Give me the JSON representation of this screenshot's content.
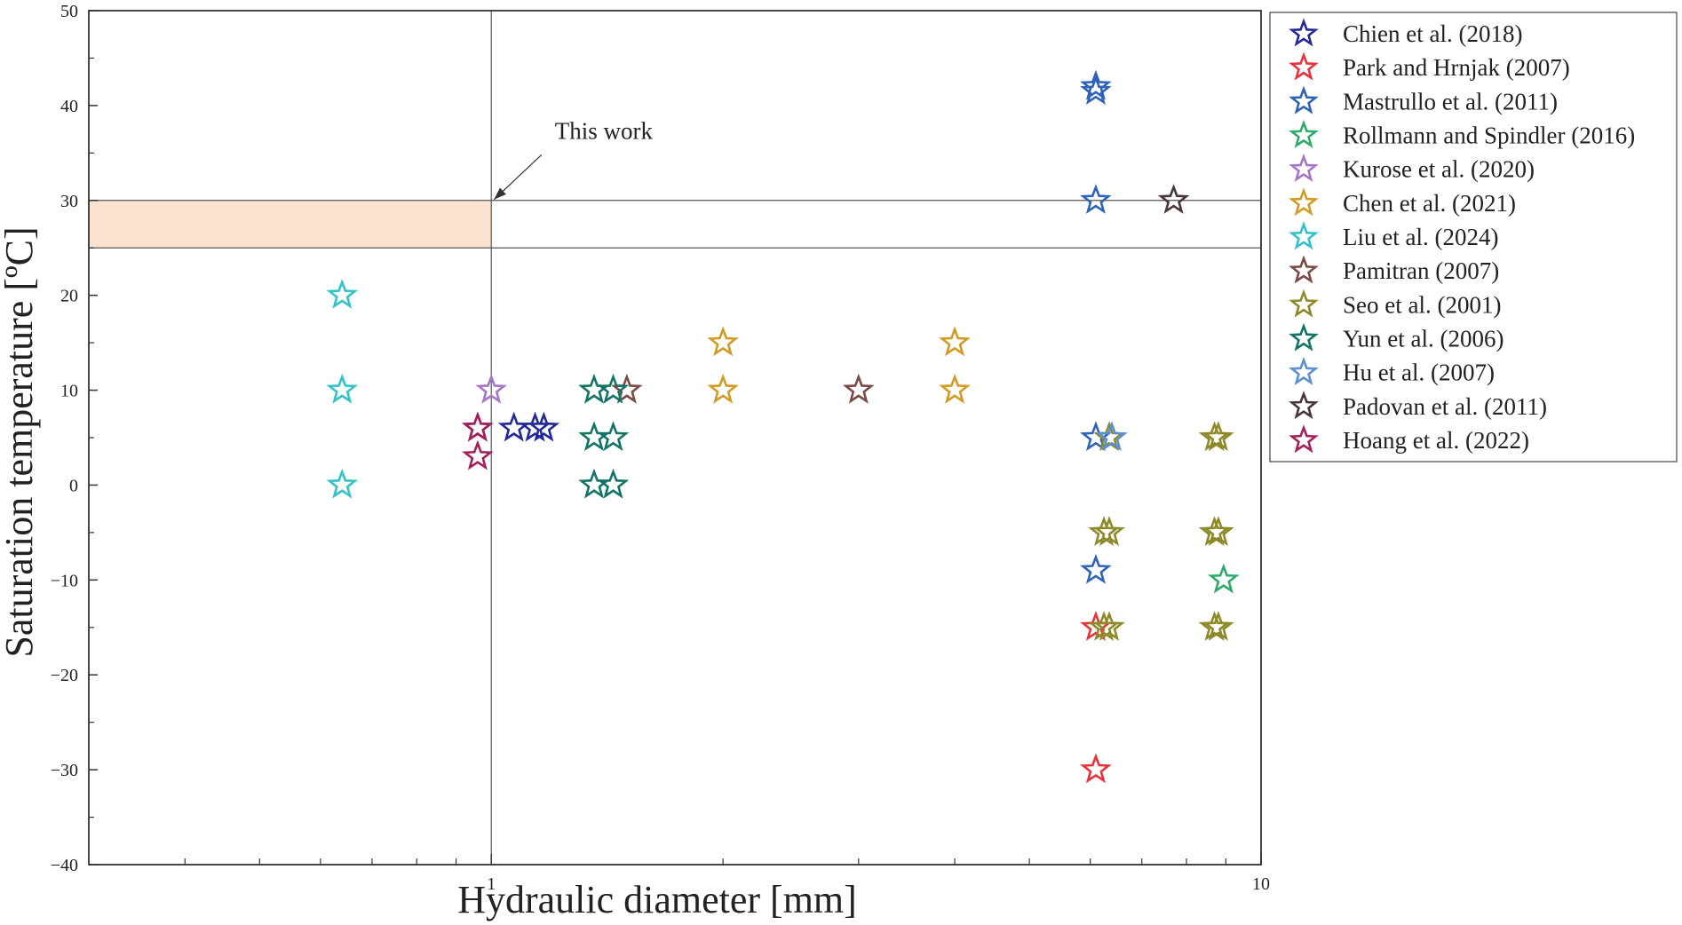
{
  "chart_data": {
    "type": "scatter",
    "xlabel": "Hydraulic diameter [mm]",
    "ylabel": "Saturation temperature [ºC]",
    "x_scale": "log",
    "xlim": [
      0.3,
      10
    ],
    "ylim": [
      -40,
      50
    ],
    "x_ticks": [
      {
        "value": 1,
        "label": "1"
      },
      {
        "value": 10,
        "label": "10"
      }
    ],
    "x_minor_ticks": [
      0.4,
      0.5,
      0.6,
      0.7,
      0.8,
      0.9,
      2,
      3,
      4,
      5,
      6,
      7,
      8,
      9
    ],
    "y_ticks": [
      {
        "value": 50,
        "label": "50"
      },
      {
        "value": 40,
        "label": "40"
      },
      {
        "value": 30,
        "label": "30"
      },
      {
        "value": 20,
        "label": "20"
      },
      {
        "value": 10,
        "label": "10"
      },
      {
        "value": 0,
        "label": "0"
      },
      {
        "value": -10,
        "label": "−10"
      },
      {
        "value": -20,
        "label": "−20"
      },
      {
        "value": -30,
        "label": "−30"
      },
      {
        "value": -40,
        "label": "−40"
      }
    ],
    "grid": false,
    "legend_position": "outside-right",
    "marker": "star-open",
    "reference_lines": {
      "vertical_x": 1,
      "horizontal_y": [
        30,
        25
      ]
    },
    "highlight_band": {
      "x": [
        0.3,
        1
      ],
      "y": [
        25,
        30
      ],
      "color": "#fbe3cf"
    },
    "annotations": [
      {
        "text": "This work",
        "text_x": 1.4,
        "text_y": 36.5,
        "arrow_to": [
          1,
          30
        ]
      }
    ],
    "series": [
      {
        "name": "Chien et al. (2018)",
        "color": "#22299a",
        "points": [
          [
            0.96,
            6
          ],
          [
            1.07,
            6
          ],
          [
            1.14,
            6
          ],
          [
            1.17,
            6
          ]
        ]
      },
      {
        "name": "Park and Hrnjak (2007)",
        "color": "#e8333b",
        "points": [
          [
            6.1,
            -15
          ],
          [
            6.1,
            -30
          ]
        ]
      },
      {
        "name": "Mastrullo et al. (2011)",
        "color": "#2f63b8",
        "points": [
          [
            6.1,
            42
          ],
          [
            6.1,
            41.5
          ],
          [
            6.1,
            30
          ],
          [
            6.1,
            5
          ],
          [
            6.1,
            -9
          ]
        ]
      },
      {
        "name": "Rollmann and Spindler (2016)",
        "color": "#2eaa6a",
        "points": [
          [
            8.94,
            -10
          ]
        ]
      },
      {
        "name": "Kurose et al. (2020)",
        "color": "#a676c9",
        "points": [
          [
            1.0,
            10
          ]
        ]
      },
      {
        "name": "Chen et al. (2021)",
        "color": "#d19b24",
        "points": [
          [
            2.0,
            15
          ],
          [
            2.0,
            10
          ],
          [
            4.0,
            15
          ],
          [
            4.0,
            10
          ]
        ]
      },
      {
        "name": "Liu et al. (2024)",
        "color": "#33c2c8",
        "points": [
          [
            0.64,
            20
          ],
          [
            0.64,
            10
          ],
          [
            0.64,
            0
          ]
        ]
      },
      {
        "name": "Pamitran (2007)",
        "color": "#7a4b44",
        "points": [
          [
            1.5,
            10
          ],
          [
            3.0,
            10
          ]
        ]
      },
      {
        "name": "Seo et al. (2001)",
        "color": "#8e8a2a",
        "points": [
          [
            6.35,
            5
          ],
          [
            6.35,
            -5
          ],
          [
            6.25,
            -5
          ],
          [
            6.35,
            -15
          ],
          [
            6.25,
            -15
          ],
          [
            8.7,
            5
          ],
          [
            8.8,
            5
          ],
          [
            8.7,
            -5
          ],
          [
            8.8,
            -5
          ],
          [
            8.7,
            -15
          ],
          [
            8.8,
            -15
          ]
        ]
      },
      {
        "name": "Yun et al. (2006)",
        "color": "#127466",
        "points": [
          [
            1.36,
            10
          ],
          [
            1.44,
            10
          ],
          [
            1.36,
            5
          ],
          [
            1.44,
            5
          ],
          [
            1.36,
            0
          ],
          [
            1.44,
            0
          ]
        ]
      },
      {
        "name": "Hu et al. (2007)",
        "color": "#5b91cf",
        "points": [
          [
            6.4,
            5
          ]
        ]
      },
      {
        "name": "Padovan et al. (2011)",
        "color": "#4a3537",
        "points": [
          [
            7.7,
            30
          ]
        ]
      },
      {
        "name": "Hoang et al. (2022)",
        "color": "#a41f5c",
        "points": [
          [
            0.96,
            6
          ],
          [
            0.96,
            3
          ]
        ]
      }
    ]
  }
}
